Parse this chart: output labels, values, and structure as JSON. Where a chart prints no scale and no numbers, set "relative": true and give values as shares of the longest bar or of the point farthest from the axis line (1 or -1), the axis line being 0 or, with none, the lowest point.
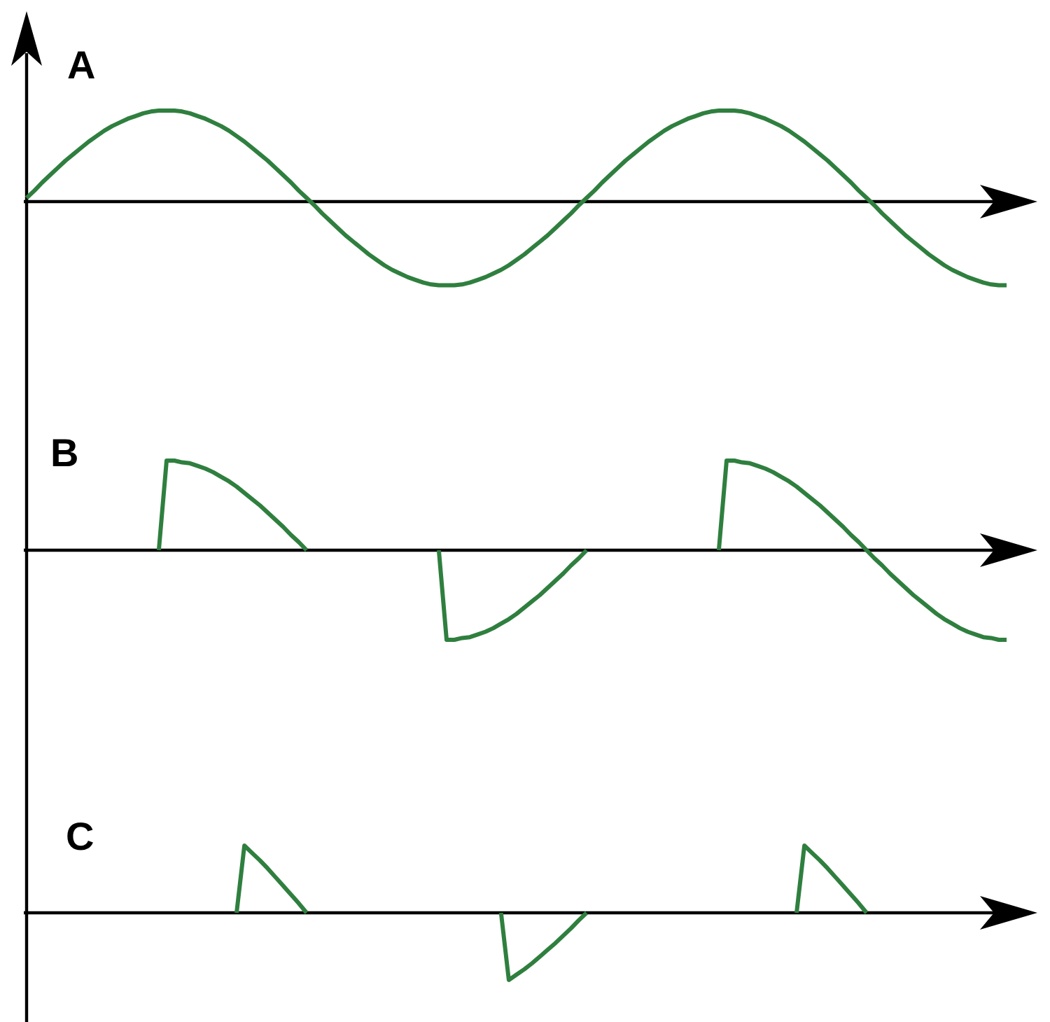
{
  "chart_data": [
    {
      "type": "line",
      "title": "A",
      "relative": true,
      "categories": [
        null,
        null,
        null,
        null,
        null,
        null,
        null,
        null,
        null,
        null,
        null,
        null,
        null,
        null,
        null,
        null,
        null,
        null,
        null,
        null,
        null,
        null,
        null,
        null,
        null,
        null,
        null,
        null,
        null,
        null,
        null,
        null,
        null,
        null,
        null,
        null,
        null,
        null,
        null,
        null,
        null,
        null,
        null,
        null,
        null,
        null,
        null,
        null,
        null,
        null,
        null,
        null,
        null,
        null,
        null,
        null,
        null,
        null,
        null,
        null,
        null,
        null,
        null,
        null,
        null,
        null,
        null,
        null,
        null,
        null,
        null,
        null,
        null,
        null,
        null,
        null,
        null,
        null,
        null,
        null,
        null,
        null,
        null,
        null,
        null,
        null,
        null,
        null,
        null,
        null,
        null,
        null,
        null,
        null,
        null,
        null,
        null,
        null,
        null,
        null,
        null,
        null,
        null,
        null,
        null,
        null,
        null,
        null,
        null,
        null,
        null,
        null,
        null,
        null,
        null,
        null,
        null,
        null,
        null,
        null,
        null,
        null,
        null,
        null,
        null,
        null,
        null
      ],
      "series": [
        {
          "color": "#2f7f3f",
          "values": [
            0.04,
            0.12,
            0.21,
            0.29,
            0.37,
            0.45,
            0.52,
            0.59,
            0.66,
            0.72,
            0.78,
            0.83,
            0.87,
            0.91,
            0.94,
            0.97,
            0.99,
            1.0,
            1.0,
            1.0,
            0.99,
            0.97,
            0.94,
            0.91,
            0.87,
            0.83,
            0.78,
            0.72,
            0.66,
            0.59,
            0.52,
            0.45,
            0.37,
            0.29,
            0.21,
            0.12,
            0.04,
            -0.04,
            -0.13,
            -0.21,
            -0.29,
            -0.37,
            -0.44,
            -0.51,
            -0.58,
            -0.64,
            -0.7,
            -0.75,
            -0.79,
            -0.83,
            -0.86,
            -0.89,
            -0.91,
            -0.92,
            -0.92,
            -0.92,
            -0.91,
            -0.89,
            -0.86,
            -0.83,
            -0.79,
            -0.75,
            -0.7,
            -0.64,
            -0.58,
            -0.51,
            -0.44,
            -0.37,
            -0.29,
            -0.21,
            -0.13,
            -0.04,
            0.04,
            0.12,
            0.21,
            0.29,
            0.37,
            0.45,
            0.52,
            0.59,
            0.66,
            0.72,
            0.78,
            0.83,
            0.87,
            0.91,
            0.94,
            0.97,
            0.99,
            1.0,
            1.0,
            1.0,
            0.99,
            0.97,
            0.94,
            0.91,
            0.87,
            0.83,
            0.78,
            0.72,
            0.66,
            0.59,
            0.52,
            0.45,
            0.37,
            0.29,
            0.21,
            0.12,
            0.04,
            -0.04,
            -0.13,
            -0.21,
            -0.29,
            -0.37,
            -0.44,
            -0.51,
            -0.58,
            -0.64,
            -0.7,
            -0.75,
            -0.79,
            -0.83,
            -0.86,
            -0.89,
            -0.91,
            -0.92,
            -0.92
          ]
        }
      ]
    },
    {
      "type": "line",
      "title": "B",
      "relative": true,
      "categories": [
        null,
        null,
        null,
        null,
        null,
        null,
        null,
        null,
        null,
        null,
        null,
        null,
        null,
        null,
        null,
        null,
        null,
        null,
        null,
        null,
        null,
        null,
        null,
        null,
        null,
        null,
        null,
        null,
        null,
        null,
        null,
        null,
        null,
        null,
        null,
        null,
        null,
        null,
        null,
        null,
        null,
        null,
        null,
        null,
        null,
        null,
        null,
        null,
        null,
        null,
        null,
        null,
        null,
        null,
        null,
        null,
        null,
        null,
        null,
        null,
        null,
        null,
        null,
        null,
        null,
        null,
        null,
        null,
        null,
        null,
        null,
        null,
        null,
        null,
        null,
        null,
        null,
        null,
        null,
        null,
        null,
        null,
        null,
        null,
        null,
        null,
        null,
        null,
        null,
        null,
        null,
        null,
        null,
        null,
        null,
        null,
        null,
        null,
        null,
        null,
        null,
        null,
        null,
        null,
        null,
        null,
        null,
        null,
        null,
        null,
        null,
        null,
        null,
        null,
        null,
        null,
        null,
        null,
        null,
        null,
        null,
        null,
        null,
        null,
        null,
        null,
        null
      ],
      "series": [
        {
          "color": "#2f7f3f",
          "values": [
            null,
            null,
            null,
            null,
            null,
            null,
            null,
            null,
            null,
            null,
            null,
            null,
            null,
            null,
            null,
            null,
            null,
            0,
            1,
            1.0,
            0.98,
            0.97,
            0.94,
            0.91,
            0.87,
            0.82,
            0.77,
            0.71,
            0.64,
            0.57,
            0.5,
            0.42,
            0.34,
            0.26,
            0.17,
            0.09,
            0,
            null,
            null,
            null,
            null,
            null,
            null,
            null,
            null,
            null,
            null,
            null,
            null,
            null,
            null,
            null,
            null,
            0,
            -1,
            -1.0,
            -0.98,
            -0.97,
            -0.94,
            -0.91,
            -0.87,
            -0.82,
            -0.77,
            -0.71,
            -0.64,
            -0.57,
            -0.5,
            -0.42,
            -0.34,
            -0.26,
            -0.17,
            -0.09,
            0,
            null,
            null,
            null,
            null,
            null,
            null,
            null,
            null,
            null,
            null,
            null,
            null,
            null,
            null,
            null,
            null,
            0,
            1,
            1.0,
            0.98,
            0.97,
            0.94,
            0.91,
            0.87,
            0.82,
            0.77,
            0.71,
            0.64,
            0.57,
            0.5,
            0.42,
            0.34,
            0.26,
            0.17,
            0.09,
            0,
            -0.09,
            -0.17,
            -0.26,
            -0.34,
            -0.42,
            -0.5,
            -0.57,
            -0.64,
            -0.71,
            -0.77,
            -0.82,
            -0.87,
            -0.91,
            -0.94,
            -0.97,
            -0.98,
            -1.0,
            -1
          ]
        }
      ]
    },
    {
      "type": "line",
      "title": "C",
      "relative": true,
      "categories": [
        null,
        null,
        null,
        null,
        null,
        null,
        null,
        null,
        null,
        null,
        null,
        null,
        null,
        null,
        null,
        null,
        null,
        null,
        null,
        null,
        null,
        null,
        null,
        null,
        null,
        null,
        null,
        null,
        null,
        null,
        null,
        null,
        null,
        null,
        null,
        null,
        null,
        null,
        null,
        null,
        null,
        null,
        null,
        null,
        null,
        null,
        null,
        null,
        null,
        null,
        null,
        null,
        null,
        null,
        null,
        null,
        null,
        null,
        null,
        null,
        null,
        null,
        null,
        null,
        null,
        null,
        null,
        null,
        null,
        null,
        null,
        null,
        null,
        null,
        null,
        null,
        null,
        null,
        null,
        null,
        null,
        null,
        null,
        null,
        null,
        null,
        null,
        null,
        null,
        null,
        null,
        null,
        null,
        null,
        null,
        null,
        null,
        null,
        null,
        null,
        null,
        null,
        null,
        null,
        null,
        null,
        null,
        null,
        null,
        null,
        null,
        null,
        null,
        null,
        null,
        null,
        null,
        null,
        null,
        null,
        null,
        null,
        null,
        null,
        null,
        null,
        null
      ],
      "series": [
        {
          "color": "#2f7f3f",
          "values": [
            null,
            null,
            null,
            null,
            null,
            null,
            null,
            null,
            null,
            null,
            null,
            null,
            null,
            null,
            null,
            null,
            null,
            null,
            null,
            null,
            null,
            null,
            null,
            null,
            null,
            null,
            null,
            0,
            1,
            0.89,
            0.78,
            0.66,
            0.53,
            0.4,
            0.27,
            0.14,
            0,
            null,
            null,
            null,
            null,
            null,
            null,
            null,
            null,
            null,
            null,
            null,
            null,
            null,
            null,
            null,
            null,
            null,
            null,
            null,
            null,
            null,
            null,
            null,
            null,
            0,
            -1,
            -0.92,
            -0.84,
            -0.75,
            -0.65,
            -0.55,
            -0.45,
            -0.34,
            -0.23,
            -0.11,
            0,
            null,
            null,
            null,
            null,
            null,
            null,
            null,
            null,
            null,
            null,
            null,
            null,
            null,
            null,
            null,
            null,
            null,
            null,
            null,
            null,
            null,
            null,
            null,
            null,
            null,
            null,
            0,
            1,
            0.89,
            0.78,
            0.66,
            0.53,
            0.4,
            0.27,
            0.14,
            0,
            null,
            null,
            null,
            null,
            null,
            null,
            null,
            null,
            null,
            null,
            null,
            null,
            null,
            null,
            null,
            null,
            null,
            null
          ]
        }
      ]
    }
  ]
}
